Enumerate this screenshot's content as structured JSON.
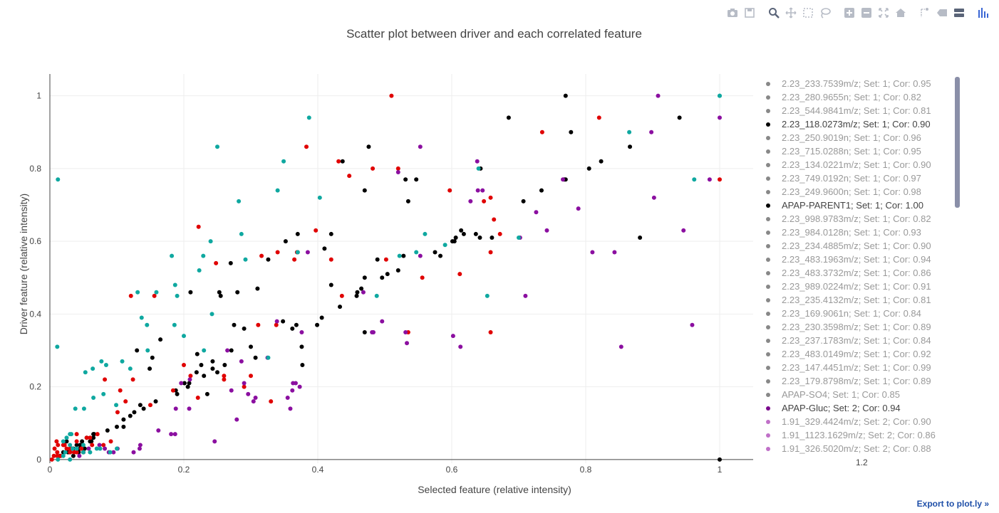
{
  "toolbar": {
    "buttons": [
      {
        "name": "camera-icon"
      },
      {
        "name": "save-icon"
      },
      {
        "gap": true
      },
      {
        "name": "zoom-icon"
      },
      {
        "name": "pan-icon"
      },
      {
        "name": "box-select-icon"
      },
      {
        "name": "lasso-icon"
      },
      {
        "gap": true
      },
      {
        "name": "zoom-in-icon"
      },
      {
        "name": "zoom-out-icon"
      },
      {
        "name": "autoscale-icon"
      },
      {
        "name": "home-icon"
      },
      {
        "gap": true
      },
      {
        "name": "spike-lines-icon"
      },
      {
        "name": "hover-closest-icon"
      },
      {
        "name": "hover-compare-icon"
      },
      {
        "gap": true
      },
      {
        "name": "plotly-logo-icon"
      }
    ]
  },
  "export_link": "Export to plot.ly »",
  "chart_data": {
    "type": "scatter",
    "title": "Scatter plot between driver and each correlated feature",
    "xlabel": "Selected feature (relative intensity)",
    "ylabel": "Driver feature (relative intensity)",
    "xlim": [
      0,
      1.05
    ],
    "ylim": [
      -0.01,
      1.06
    ],
    "xticks": [
      "0",
      "0.2",
      "0.4",
      "0.6",
      "0.8",
      "1"
    ],
    "yticks": [
      "0",
      "0.2",
      "0.4",
      "0.6",
      "0.8",
      "1"
    ],
    "x_extra_tick": "1.2",
    "grid": true,
    "legend_position": "right",
    "series": [
      {
        "name": "2.23_118.0273m/z; Set: 1; Cor: 0.90",
        "color": "#000000",
        "x": [
          0.77,
          0.94,
          0.685,
          0.778,
          0.823,
          0.866,
          0.476,
          0.437,
          0.643,
          0.531,
          0.547,
          0.535,
          0.47,
          0.528,
          0.642,
          0.601,
          0.618,
          0.66,
          0.707,
          0.734,
          0.768,
          0.77,
          0.805,
          0.881,
          0.352,
          0.37,
          0.41,
          0.42,
          0.42,
          0.489,
          0.458,
          0.459,
          0.465,
          0.47,
          0.496,
          0.504,
          0.52,
          0.575,
          0.583,
          0.636,
          0.614,
          0.606,
          0.604,
          0.368,
          0.399,
          0.433,
          0.47,
          0.253,
          0.255,
          0.27,
          0.326,
          0.31,
          0.28,
          0.275,
          0.29,
          0.21,
          0.22,
          0.23,
          0.25,
          0.243,
          0.261,
          0.271,
          0.3,
          0.307,
          0.348,
          0.362,
          0.406,
          0.377,
          0.376,
          0.206,
          0.19,
          0.158,
          0.14,
          0.135,
          0.126,
          0.12,
          0.11,
          0.11,
          0.1,
          0.086,
          0.065,
          0.062,
          0.055,
          0.043,
          0.035,
          0.03,
          0.13,
          0.153,
          0.165,
          0.149,
          0.188,
          0.201,
          0.208,
          0.235,
          0.219,
          0.226,
          0.243,
          0.04,
          0.06,
          0.065,
          0.045,
          0.05,
          0.066,
          0.015,
          0.02,
          0.027,
          0.033,
          0.045,
          0.048,
          0.052,
          0.035,
          0.025,
          1.0
        ],
        "y": [
          1.0,
          0.94,
          0.94,
          0.9,
          0.82,
          0.86,
          0.86,
          0.82,
          0.8,
          0.77,
          0.77,
          0.71,
          0.74,
          0.56,
          0.61,
          0.6,
          0.62,
          0.61,
          0.71,
          0.74,
          0.77,
          0.77,
          0.8,
          0.61,
          0.6,
          0.62,
          0.58,
          0.62,
          0.48,
          0.55,
          0.45,
          0.46,
          0.47,
          0.5,
          0.5,
          0.51,
          0.52,
          0.57,
          0.56,
          0.62,
          0.63,
          0.61,
          0.6,
          0.37,
          0.37,
          0.42,
          0.35,
          0.46,
          0.45,
          0.54,
          0.55,
          0.47,
          0.46,
          0.37,
          0.36,
          0.46,
          0.29,
          0.23,
          0.24,
          0.25,
          0.26,
          0.3,
          0.31,
          0.28,
          0.38,
          0.36,
          0.39,
          0.26,
          0.31,
          0.2,
          0.18,
          0.16,
          0.14,
          0.15,
          0.13,
          0.12,
          0.11,
          0.09,
          0.09,
          0.08,
          0.07,
          0.05,
          0.06,
          0.02,
          0.03,
          0.02,
          0.3,
          0.28,
          0.33,
          0.25,
          0.19,
          0.21,
          0.21,
          0.18,
          0.24,
          0.26,
          0.27,
          0.04,
          0.05,
          0.06,
          0.03,
          0.02,
          0.07,
          0.01,
          0.02,
          0.02,
          0.03,
          0.04,
          0.05,
          0.03,
          0.01,
          0.05,
          0.0
        ]
      },
      {
        "name": "APAP-PARENT1; Set: 1; Cor: 1.00",
        "color": "#e00000",
        "x": [
          0.51,
          0.82,
          0.735,
          0.383,
          0.431,
          0.447,
          0.482,
          0.52,
          0.597,
          0.648,
          0.658,
          0.663,
          0.672,
          0.658,
          0.222,
          0.248,
          0.316,
          0.34,
          0.365,
          0.397,
          0.369,
          0.37,
          0.42,
          0.436,
          0.502,
          0.535,
          0.556,
          0.612,
          0.658,
          1.0,
          0.121,
          0.156,
          0.2,
          0.21,
          0.221,
          0.26,
          0.29,
          0.3,
          0.26,
          0.338,
          0.311,
          0.33,
          0.184,
          0.15,
          0.105,
          0.124,
          0.113,
          0.082,
          0.101,
          0.091,
          0.04,
          0.055,
          0.06,
          0.071,
          0.08,
          0.063,
          0.04,
          0.047,
          0.011,
          0.02,
          0.03,
          0.04,
          0.05,
          0.01,
          0.025,
          0.036,
          0.022,
          0.016,
          0.011,
          0.007,
          0.012,
          0.03,
          0.003,
          0.006
        ],
        "y": [
          1.0,
          0.94,
          0.9,
          0.86,
          0.82,
          0.78,
          0.8,
          0.8,
          0.74,
          0.71,
          0.72,
          0.66,
          0.62,
          0.57,
          0.64,
          0.54,
          0.56,
          0.57,
          0.55,
          0.63,
          0.57,
          0.57,
          0.55,
          0.45,
          0.55,
          0.35,
          0.5,
          0.51,
          0.35,
          0.77,
          0.45,
          0.45,
          0.26,
          0.23,
          0.17,
          0.23,
          0.2,
          0.23,
          0.22,
          0.37,
          0.37,
          0.16,
          0.19,
          0.15,
          0.19,
          0.22,
          0.16,
          0.22,
          0.13,
          0.05,
          0.07,
          0.06,
          0.06,
          0.07,
          0.04,
          0.04,
          0.05,
          0.03,
          0.01,
          0.04,
          0.03,
          0.02,
          0.02,
          0.05,
          0.03,
          0.02,
          0.04,
          0.01,
          0.02,
          0.03,
          0.04,
          0.02,
          0.0,
          0.01
        ]
      },
      {
        "name": "APAP-Gluc; Set: 2; Cor: 0.94",
        "color": "#8b0fa0",
        "x": [
          0.908,
          0.898,
          1.0,
          0.985,
          0.902,
          0.946,
          0.789,
          0.638,
          0.553,
          0.52,
          0.468,
          0.483,
          0.496,
          0.531,
          0.553,
          0.602,
          0.628,
          0.646,
          0.702,
          0.766,
          0.726,
          0.71,
          0.742,
          0.81,
          0.843,
          0.853,
          0.959,
          0.639,
          0.613,
          0.481,
          0.533,
          0.385,
          0.373,
          0.359,
          0.339,
          0.363,
          0.376,
          0.286,
          0.271,
          0.265,
          0.29,
          0.304,
          0.307,
          0.325,
          0.355,
          0.362,
          0.367,
          0.181,
          0.187,
          0.246,
          0.208,
          0.279,
          0.296,
          0.209,
          0.196,
          0.188,
          0.162,
          0.135,
          0.134,
          0.125,
          0.095,
          0.088,
          0.074,
          0.082,
          0.101,
          0.058,
          0.044
        ],
        "y": [
          1.0,
          0.9,
          0.94,
          0.77,
          0.72,
          0.63,
          0.69,
          0.82,
          0.86,
          0.79,
          0.46,
          0.35,
          0.38,
          0.35,
          0.56,
          0.34,
          0.71,
          0.74,
          0.61,
          0.77,
          0.68,
          0.45,
          0.63,
          0.57,
          0.57,
          0.31,
          0.37,
          0.74,
          0.31,
          0.35,
          0.32,
          0.57,
          0.2,
          0.14,
          0.38,
          0.21,
          0.35,
          0.27,
          0.19,
          0.3,
          0.21,
          0.16,
          0.17,
          0.28,
          0.17,
          0.19,
          0.21,
          0.07,
          0.07,
          0.05,
          0.14,
          0.11,
          0.18,
          0.22,
          0.21,
          0.14,
          0.08,
          0.04,
          0.03,
          0.02,
          0.02,
          0.02,
          0.04,
          0.03,
          0.03,
          0.03,
          0.01
        ]
      },
      {
        "name": "1.91_329.4424m/z; Set: 2; Cor: 0.90",
        "color": "#0fa8a0",
        "x": [
          0.387,
          0.25,
          0.349,
          0.34,
          0.403,
          0.37,
          0.64,
          0.865,
          0.962,
          1.0,
          1.0,
          0.012,
          0.011,
          0.282,
          0.286,
          0.24,
          0.223,
          0.229,
          0.292,
          0.326,
          0.56,
          0.59,
          0.488,
          0.522,
          0.547,
          0.653,
          0.7,
          0.182,
          0.159,
          0.131,
          0.137,
          0.187,
          0.186,
          0.23,
          0.242,
          0.145,
          0.19,
          0.146,
          0.2,
          0.12,
          0.108,
          0.084,
          0.077,
          0.08,
          0.065,
          0.064,
          0.053,
          0.051,
          0.099,
          0.038,
          0.032,
          0.03,
          0.025,
          0.02,
          0.034,
          0.03,
          0.04,
          0.023,
          0.05,
          0.06,
          0.07,
          0.075,
          0.09,
          0.1,
          0.03,
          0.02,
          0.012,
          0.05
        ],
        "y": [
          0.94,
          0.86,
          0.82,
          0.74,
          0.72,
          0.57,
          0.8,
          0.9,
          0.77,
          1.0,
          1.0,
          0.77,
          0.31,
          0.71,
          0.62,
          0.6,
          0.52,
          0.56,
          0.55,
          0.28,
          0.62,
          0.59,
          0.45,
          0.56,
          0.57,
          0.45,
          0.61,
          0.56,
          0.46,
          0.46,
          0.39,
          0.48,
          0.37,
          0.3,
          0.4,
          0.37,
          0.45,
          0.3,
          0.34,
          0.25,
          0.27,
          0.26,
          0.27,
          0.18,
          0.17,
          0.25,
          0.24,
          0.14,
          0.15,
          0.14,
          0.07,
          0.07,
          0.06,
          0.05,
          0.03,
          0.04,
          0.03,
          0.02,
          0.02,
          0.02,
          0.03,
          0.03,
          0.02,
          0.03,
          0.0,
          0.01,
          0.0,
          0.04
        ]
      }
    ]
  },
  "legend_items": [
    {
      "text": "2.23_233.7539m/z; Set: 1; Cor: 0.95",
      "color": "#888888",
      "hidden": true
    },
    {
      "text": "2.23_280.9655n; Set: 1; Cor: 0.82",
      "color": "#888888",
      "hidden": true
    },
    {
      "text": "2.23_544.9841m/z; Set: 1; Cor: 0.81",
      "color": "#888888",
      "hidden": true
    },
    {
      "text": "2.23_118.0273m/z; Set: 1; Cor: 0.90",
      "color": "#000000",
      "hidden": false
    },
    {
      "text": "2.23_250.9019n; Set: 1; Cor: 0.96",
      "color": "#888888",
      "hidden": true
    },
    {
      "text": "2.23_715.0288n; Set: 1; Cor: 0.95",
      "color": "#888888",
      "hidden": true
    },
    {
      "text": "2.23_134.0221m/z; Set: 1; Cor: 0.90",
      "color": "#888888",
      "hidden": true
    },
    {
      "text": "2.23_749.0192n; Set: 1; Cor: 0.97",
      "color": "#888888",
      "hidden": true
    },
    {
      "text": "2.23_249.9600n; Set: 1; Cor: 0.98",
      "color": "#888888",
      "hidden": true
    },
    {
      "text": "APAP-PARENT1; Set: 1; Cor: 1.00",
      "color": "#000000",
      "hidden": false
    },
    {
      "text": "2.23_998.9783m/z; Set: 1; Cor: 0.82",
      "color": "#888888",
      "hidden": true
    },
    {
      "text": "2.23_984.0128n; Set: 1; Cor: 0.93",
      "color": "#888888",
      "hidden": true
    },
    {
      "text": "2.23_234.4885m/z; Set: 1; Cor: 0.90",
      "color": "#888888",
      "hidden": true
    },
    {
      "text": "2.23_483.1963m/z; Set: 1; Cor: 0.94",
      "color": "#888888",
      "hidden": true
    },
    {
      "text": "2.23_483.3732m/z; Set: 1; Cor: 0.86",
      "color": "#888888",
      "hidden": true
    },
    {
      "text": "2.23_989.0224m/z; Set: 1; Cor: 0.91",
      "color": "#888888",
      "hidden": true
    },
    {
      "text": "2.23_235.4132m/z; Set: 1; Cor: 0.81",
      "color": "#888888",
      "hidden": true
    },
    {
      "text": "2.23_169.9061n; Set: 1; Cor: 0.84",
      "color": "#888888",
      "hidden": true
    },
    {
      "text": "2.23_230.3598m/z; Set: 1; Cor: 0.89",
      "color": "#888888",
      "hidden": true
    },
    {
      "text": "2.23_237.1783m/z; Set: 1; Cor: 0.84",
      "color": "#888888",
      "hidden": true
    },
    {
      "text": "2.23_483.0149m/z; Set: 1; Cor: 0.92",
      "color": "#888888",
      "hidden": true
    },
    {
      "text": "2.23_147.4451m/z; Set: 1; Cor: 0.99",
      "color": "#888888",
      "hidden": true
    },
    {
      "text": "2.23_179.8798m/z; Set: 1; Cor: 0.89",
      "color": "#888888",
      "hidden": true
    },
    {
      "text": "APAP-SO4; Set: 1; Cor: 0.85",
      "color": "#888888",
      "hidden": true
    },
    {
      "text": "APAP-Gluc; Set: 2; Cor: 0.94",
      "color": "#7a0a8c",
      "hidden": false
    },
    {
      "text": "1.91_329.4424m/z; Set: 2; Cor: 0.90",
      "color": "#c070c8",
      "hidden": true
    },
    {
      "text": "1.91_1123.1629m/z; Set: 2; Cor: 0.86",
      "color": "#c070c8",
      "hidden": true
    },
    {
      "text": "1.91_326.5020m/z; Set: 2; Cor: 0.88",
      "color": "#c070c8",
      "hidden": true
    }
  ]
}
